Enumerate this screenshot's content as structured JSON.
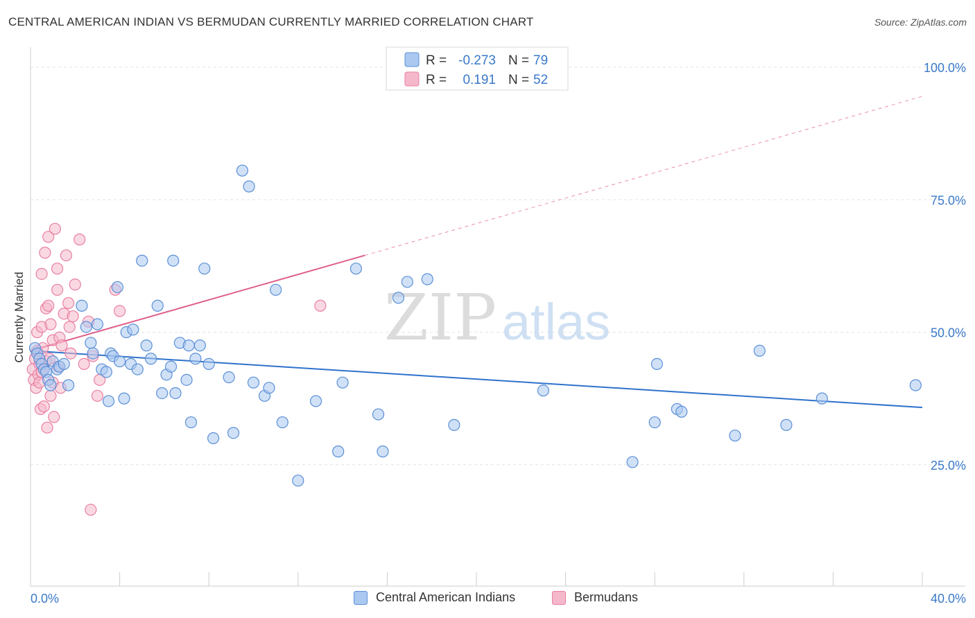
{
  "header": {
    "title": "CENTRAL AMERICAN INDIAN VS BERMUDAN CURRENTLY MARRIED CORRELATION CHART",
    "source": "Source: ZipAtlas.com"
  },
  "legend": {
    "rows": [
      {
        "r_label": "R =",
        "r_value": "-0.273",
        "n_label": "N =",
        "n_value": "79"
      },
      {
        "r_label": "R =",
        "r_value": "0.191",
        "n_label": "N =",
        "n_value": "52"
      }
    ]
  },
  "watermark": {
    "zip": "ZIP",
    "atlas": "atlas"
  },
  "colors": {
    "blue_fill": "#aac8f0",
    "blue_stroke": "#5b8fd6",
    "blue_line": "#2e72cc",
    "pink_fill": "#f5b8cb",
    "pink_stroke": "#e87fa2",
    "pink_line": "#e0608b",
    "value_text": "#3a78c8",
    "grid": "#e3e3e3"
  },
  "chart_data": {
    "type": "scatter",
    "title": "CENTRAL AMERICAN INDIAN VS BERMUDAN CURRENTLY MARRIED CORRELATION CHART",
    "xlabel": "",
    "ylabel": "Currently Married",
    "xlim": [
      0,
      40
    ],
    "ylim": [
      0,
      100
    ],
    "x_tick_labels": [
      "0.0%",
      "40.0%"
    ],
    "y_tick_labels": [
      "100.0%",
      "75.0%",
      "50.0%",
      "25.0%"
    ],
    "y_ticks": [
      100,
      75,
      50,
      25
    ],
    "grid": true,
    "legend_position": "top-center",
    "series": [
      {
        "name": "Central American Indians",
        "color": "blue",
        "R": -0.273,
        "N": 79,
        "trend": {
          "x": [
            0,
            40
          ],
          "y": [
            46.5,
            35.8
          ],
          "dashed_from": null
        },
        "points": [
          [
            0.2,
            47
          ],
          [
            0.3,
            46
          ],
          [
            0.4,
            45
          ],
          [
            0.5,
            44
          ],
          [
            0.6,
            43
          ],
          [
            0.7,
            42.5
          ],
          [
            0.8,
            41
          ],
          [
            0.9,
            40
          ],
          [
            1.0,
            44.5
          ],
          [
            1.2,
            43
          ],
          [
            1.3,
            43.5
          ],
          [
            1.5,
            44
          ],
          [
            1.7,
            40
          ],
          [
            2.3,
            55
          ],
          [
            2.5,
            51
          ],
          [
            2.7,
            48
          ],
          [
            2.8,
            46
          ],
          [
            3.0,
            51.5
          ],
          [
            3.2,
            43
          ],
          [
            3.4,
            42.5
          ],
          [
            3.5,
            37
          ],
          [
            3.6,
            46
          ],
          [
            3.7,
            45.5
          ],
          [
            3.9,
            58.5
          ],
          [
            4.0,
            44.5
          ],
          [
            4.2,
            37.5
          ],
          [
            4.3,
            50
          ],
          [
            4.5,
            44
          ],
          [
            4.6,
            50.5
          ],
          [
            4.8,
            43
          ],
          [
            5.0,
            63.5
          ],
          [
            5.2,
            47.5
          ],
          [
            5.4,
            45
          ],
          [
            5.7,
            55
          ],
          [
            5.9,
            38.5
          ],
          [
            6.1,
            42
          ],
          [
            6.3,
            43.5
          ],
          [
            6.4,
            63.5
          ],
          [
            6.5,
            38.5
          ],
          [
            6.7,
            48
          ],
          [
            7.0,
            41
          ],
          [
            7.1,
            47.5
          ],
          [
            7.2,
            33
          ],
          [
            7.4,
            45
          ],
          [
            7.6,
            47.5
          ],
          [
            7.8,
            62
          ],
          [
            8.0,
            44
          ],
          [
            8.2,
            30
          ],
          [
            8.9,
            41.5
          ],
          [
            9.1,
            31
          ],
          [
            9.5,
            80.5
          ],
          [
            9.8,
            77.5
          ],
          [
            10.0,
            40.5
          ],
          [
            10.5,
            38
          ],
          [
            10.7,
            39.5
          ],
          [
            11.0,
            58
          ],
          [
            11.3,
            33
          ],
          [
            12.0,
            22
          ],
          [
            12.8,
            37
          ],
          [
            13.8,
            27.5
          ],
          [
            14.0,
            40.5
          ],
          [
            14.6,
            62
          ],
          [
            15.6,
            34.5
          ],
          [
            15.8,
            27.5
          ],
          [
            16.5,
            56.5
          ],
          [
            16.9,
            59.5
          ],
          [
            17.8,
            60
          ],
          [
            19.0,
            32.5
          ],
          [
            23.0,
            39
          ],
          [
            27.0,
            25.5
          ],
          [
            28.0,
            33
          ],
          [
            28.1,
            44
          ],
          [
            29.0,
            35.5
          ],
          [
            29.2,
            35
          ],
          [
            31.6,
            30.5
          ],
          [
            32.7,
            46.5
          ],
          [
            33.9,
            32.5
          ],
          [
            35.5,
            37.5
          ],
          [
            39.7,
            40
          ]
        ]
      },
      {
        "name": "Bermudans",
        "color": "pink",
        "R": 0.191,
        "N": 52,
        "trend": {
          "x": [
            0,
            40
          ],
          "y": [
            46.5,
            94.5
          ],
          "solid_until_x": 15
        },
        "points": [
          [
            0.1,
            43
          ],
          [
            0.15,
            41
          ],
          [
            0.2,
            45
          ],
          [
            0.25,
            39.5
          ],
          [
            0.3,
            46.5
          ],
          [
            0.3,
            50
          ],
          [
            0.35,
            42
          ],
          [
            0.4,
            44
          ],
          [
            0.4,
            40.5
          ],
          [
            0.45,
            35.5
          ],
          [
            0.5,
            61
          ],
          [
            0.5,
            51
          ],
          [
            0.55,
            47
          ],
          [
            0.6,
            43
          ],
          [
            0.6,
            36
          ],
          [
            0.65,
            65
          ],
          [
            0.7,
            54.5
          ],
          [
            0.7,
            44.5
          ],
          [
            0.75,
            32
          ],
          [
            0.8,
            68
          ],
          [
            0.8,
            55
          ],
          [
            0.85,
            45
          ],
          [
            0.9,
            38
          ],
          [
            0.9,
            51.5
          ],
          [
            1.0,
            48.5
          ],
          [
            1.0,
            40.5
          ],
          [
            1.05,
            34
          ],
          [
            1.1,
            69.5
          ],
          [
            1.2,
            62
          ],
          [
            1.2,
            58
          ],
          [
            1.25,
            43.5
          ],
          [
            1.3,
            49
          ],
          [
            1.35,
            39.5
          ],
          [
            1.4,
            47.5
          ],
          [
            1.5,
            53.5
          ],
          [
            1.6,
            64.5
          ],
          [
            1.7,
            55.5
          ],
          [
            1.75,
            51
          ],
          [
            1.8,
            46
          ],
          [
            1.9,
            53
          ],
          [
            2.0,
            59
          ],
          [
            2.2,
            67.5
          ],
          [
            2.4,
            44
          ],
          [
            2.6,
            52
          ],
          [
            2.8,
            45.5
          ],
          [
            3.0,
            38
          ],
          [
            3.1,
            41
          ],
          [
            3.8,
            58
          ],
          [
            4.0,
            54
          ],
          [
            13.0,
            55
          ],
          [
            2.7,
            16.5
          ],
          [
            0.5,
            42.5
          ]
        ]
      }
    ]
  },
  "bottom_legend": {
    "items": [
      {
        "label": "Central American Indians"
      },
      {
        "label": "Bermudans"
      }
    ]
  }
}
